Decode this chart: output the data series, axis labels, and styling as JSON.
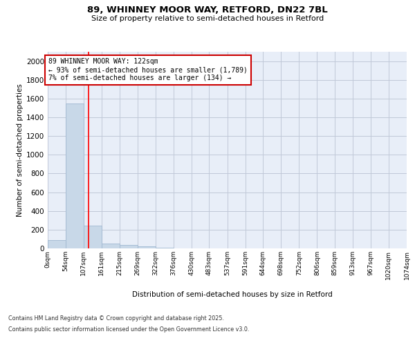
{
  "title1": "89, WHINNEY MOOR WAY, RETFORD, DN22 7BL",
  "title2": "Size of property relative to semi-detached houses in Retford",
  "xlabel": "Distribution of semi-detached houses by size in Retford",
  "ylabel": "Number of semi-detached properties",
  "bar_values": [
    90,
    1550,
    240,
    50,
    35,
    20,
    5,
    2,
    1,
    1,
    0,
    0,
    0,
    0,
    0,
    0,
    0,
    0,
    0,
    0
  ],
  "bin_edges": [
    0,
    54,
    107,
    161,
    215,
    269,
    322,
    376,
    430,
    483,
    537,
    591,
    644,
    698,
    752,
    806,
    859,
    913,
    967,
    1020,
    1074
  ],
  "tick_labels": [
    "0sqm",
    "54sqm",
    "107sqm",
    "161sqm",
    "215sqm",
    "269sqm",
    "322sqm",
    "376sqm",
    "430sqm",
    "483sqm",
    "537sqm",
    "591sqm",
    "644sqm",
    "698sqm",
    "752sqm",
    "806sqm",
    "859sqm",
    "913sqm",
    "967sqm",
    "1020sqm",
    "1074sqm"
  ],
  "bar_color": "#c8d8e8",
  "bar_edge_color": "#a0b8d0",
  "grid_color": "#c0c8d8",
  "background_color": "#e8eef8",
  "red_line_x": 122,
  "annotation_title": "89 WHINNEY MOOR WAY: 122sqm",
  "annotation_line1": "← 93% of semi-detached houses are smaller (1,789)",
  "annotation_line2": "7% of semi-detached houses are larger (134) →",
  "annotation_box_color": "#ffffff",
  "annotation_box_edge": "#cc0000",
  "footer1": "Contains HM Land Registry data © Crown copyright and database right 2025.",
  "footer2": "Contains public sector information licensed under the Open Government Licence v3.0.",
  "ylim": [
    0,
    2100
  ],
  "yticks": [
    0,
    200,
    400,
    600,
    800,
    1000,
    1200,
    1400,
    1600,
    1800,
    2000
  ]
}
